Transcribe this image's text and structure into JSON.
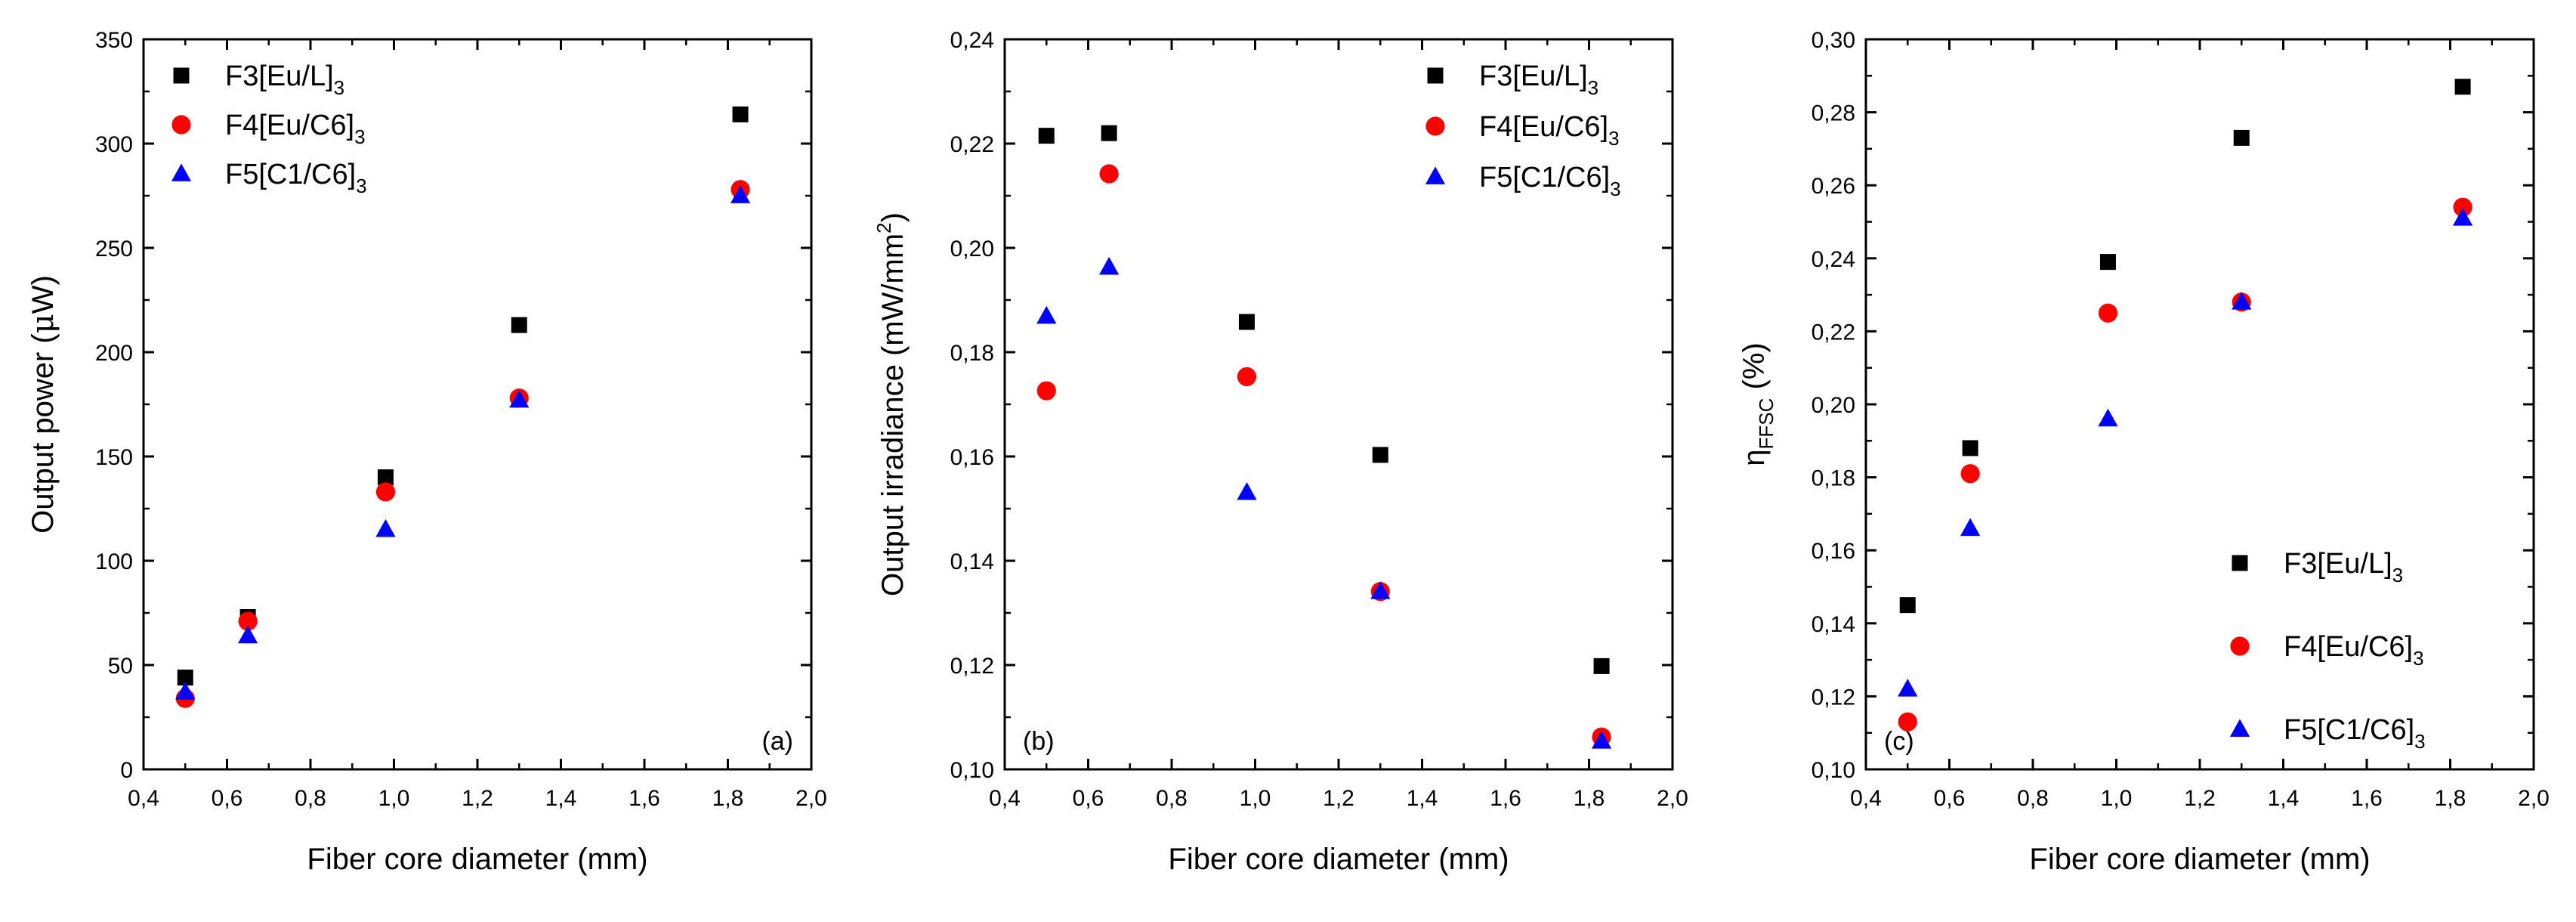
{
  "colors": {
    "series": [
      "#000000",
      "#ff0000",
      "#0000ff"
    ],
    "axis": "#000000"
  },
  "chart_data": [
    {
      "type": "scatter",
      "panel_label": "(a)",
      "xlabel": "Fiber core diameter (mm)",
      "ylabel_main": "Output power (",
      "ylabel_mu": "μ",
      "ylabel_unit": "W)",
      "xlim": [
        0.4,
        2.0
      ],
      "ylim": [
        0,
        350
      ],
      "x_major": 0.2,
      "y_major": 50,
      "x_tick_labels": [
        "0,4",
        "0,6",
        "0,8",
        "1,0",
        "1,2",
        "1,4",
        "1,6",
        "1,8",
        "2,0"
      ],
      "y_tick_labels": [
        "0",
        "50",
        "100",
        "150",
        "200",
        "250",
        "300",
        "350"
      ],
      "legend_position": "top-left",
      "series": [
        {
          "name": "F3[Eu/L]",
          "sub": "3",
          "marker": "square",
          "x": [
            0.5,
            0.65,
            0.98,
            1.3,
            1.83
          ],
          "y": [
            44,
            73,
            140,
            213,
            314
          ]
        },
        {
          "name": "F4[Eu/C6]",
          "sub": "3",
          "marker": "circle",
          "x": [
            0.5,
            0.65,
            0.98,
            1.3,
            1.83
          ],
          "y": [
            34,
            71,
            133,
            178,
            278
          ]
        },
        {
          "name": "F5[C1/C6]",
          "sub": "3",
          "marker": "triangle",
          "x": [
            0.5,
            0.65,
            0.98,
            1.3,
            1.83
          ],
          "y": [
            37,
            64,
            115,
            177,
            275
          ]
        }
      ]
    },
    {
      "type": "scatter",
      "panel_label": "(b)",
      "xlabel": "Fiber core diameter (mm)",
      "ylabel_main": "Output irradiance (mW/mm",
      "ylabel_sup": "2",
      "ylabel_unit": ")",
      "xlim": [
        0.4,
        2.0
      ],
      "ylim": [
        0.1,
        0.24
      ],
      "x_major": 0.2,
      "y_major": 0.02,
      "x_tick_labels": [
        "0,4",
        "0,6",
        "0,8",
        "1,0",
        "1,2",
        "1,4",
        "1,6",
        "1,8",
        "2,0"
      ],
      "y_tick_labels": [
        "0,10",
        "0,12",
        "0,14",
        "0,16",
        "0,18",
        "0,20",
        "0,22",
        "0,24"
      ],
      "legend_position": "top-right",
      "series": [
        {
          "name": "F3[Eu/L]",
          "sub": "3",
          "marker": "square",
          "x": [
            0.5,
            0.65,
            0.98,
            1.3,
            1.83
          ],
          "y": [
            0.2215,
            0.222,
            0.1858,
            0.1603,
            0.1198
          ]
        },
        {
          "name": "F4[Eu/C6]",
          "sub": "3",
          "marker": "circle",
          "x": [
            0.5,
            0.65,
            0.98,
            1.3,
            1.83
          ],
          "y": [
            0.1726,
            0.2142,
            0.1753,
            0.1341,
            0.1062
          ]
        },
        {
          "name": "F5[C1/C6]",
          "sub": "3",
          "marker": "triangle",
          "x": [
            0.5,
            0.65,
            0.98,
            1.3,
            1.83
          ],
          "y": [
            0.1869,
            0.1963,
            0.1531,
            0.1341,
            0.1054
          ]
        }
      ]
    },
    {
      "type": "scatter",
      "panel_label": "(c)",
      "xlabel": "Fiber core diameter (mm)",
      "ylabel_main": "η",
      "ylabel_sub": "FFSC",
      "ylabel_unit": " (%)",
      "xlim": [
        0.4,
        2.0
      ],
      "ylim": [
        0.1,
        0.3
      ],
      "x_major": 0.2,
      "y_major": 0.02,
      "x_tick_labels": [
        "0,4",
        "0,6",
        "0,8",
        "1,0",
        "1,2",
        "1,4",
        "1,6",
        "1,8",
        "2,0"
      ],
      "y_tick_labels": [
        "0,10",
        "0,12",
        "0,14",
        "0,16",
        "0,18",
        "0,20",
        "0,22",
        "0,24",
        "0,26",
        "0,28",
        "0,30"
      ],
      "legend_position": "bottom-right",
      "series": [
        {
          "name": "F3[Eu/L]",
          "sub": "3",
          "marker": "square",
          "x": [
            0.5,
            0.65,
            0.98,
            1.3,
            1.83
          ],
          "y": [
            0.145,
            0.188,
            0.239,
            0.273,
            0.287
          ]
        },
        {
          "name": "F4[Eu/C6]",
          "sub": "3",
          "marker": "circle",
          "x": [
            0.5,
            0.65,
            0.98,
            1.3,
            1.83
          ],
          "y": [
            0.113,
            0.181,
            0.225,
            0.228,
            0.254
          ]
        },
        {
          "name": "F5[C1/C6]",
          "sub": "3",
          "marker": "triangle",
          "x": [
            0.5,
            0.65,
            0.98,
            1.3,
            1.83
          ],
          "y": [
            0.122,
            0.166,
            0.196,
            0.228,
            0.251
          ]
        }
      ]
    }
  ]
}
